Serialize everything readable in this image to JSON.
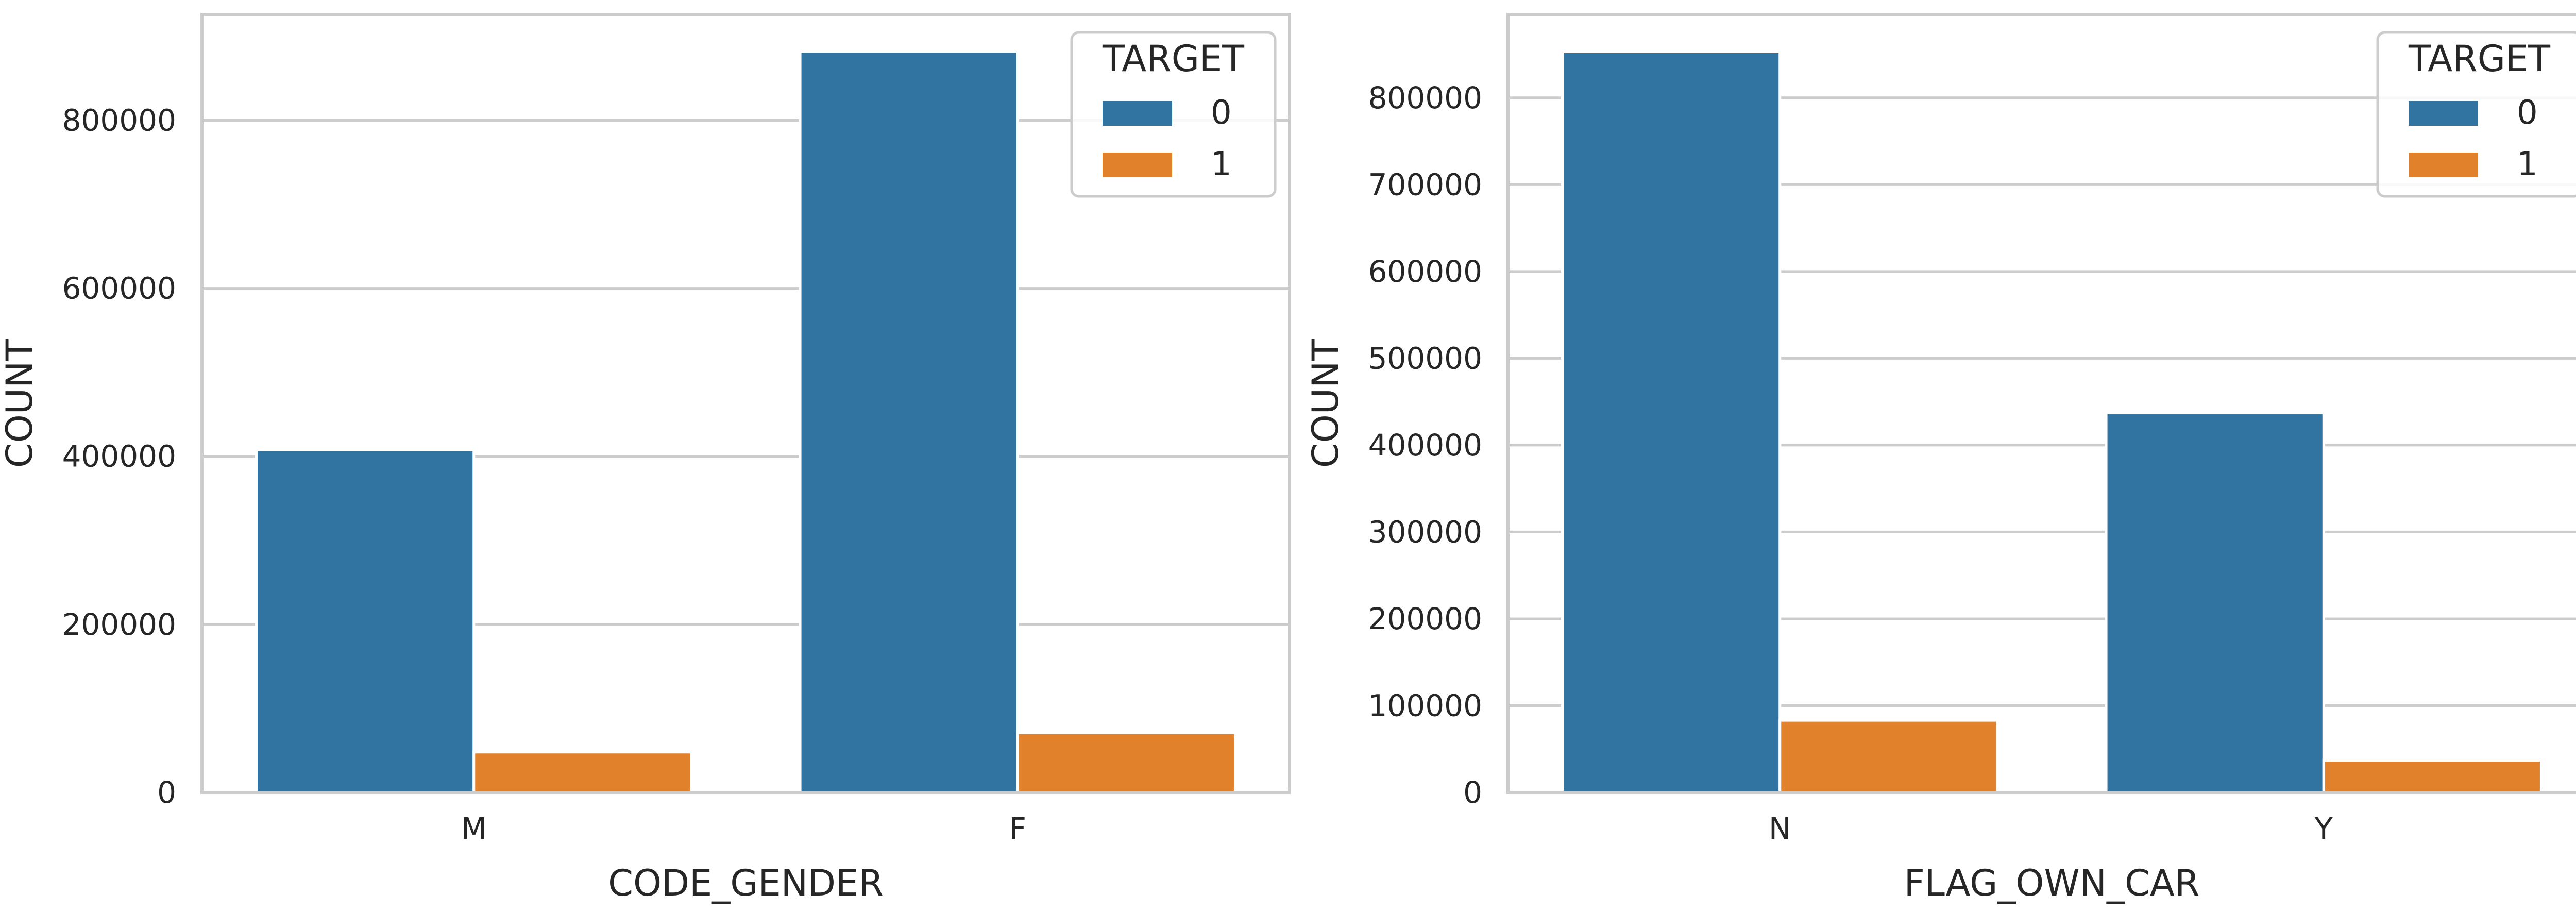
{
  "colors": {
    "target_0": "#3274a1",
    "target_1": "#e1812c",
    "grid": "#cccccc",
    "frame": "#cccccc"
  },
  "chart_data": [
    {
      "type": "bar",
      "categories": [
        "M",
        "F"
      ],
      "series": [
        {
          "name": "0",
          "values": [
            408000,
            882000
          ]
        },
        {
          "name": "1",
          "values": [
            48000,
            71000
          ]
        }
      ],
      "xlabel": "CODE_GENDER",
      "ylabel": "COUNT",
      "ylim": [
        0,
        926000
      ],
      "yticks": [
        0,
        200000,
        400000,
        600000,
        800000
      ],
      "ytick_labels": [
        "0",
        "200000",
        "400000",
        "600000",
        "800000"
      ],
      "legend": {
        "title": "TARGET",
        "entries": [
          "0",
          "1"
        ],
        "placement": "top-right"
      },
      "grid": true
    },
    {
      "type": "bar",
      "categories": [
        "N",
        "Y"
      ],
      "series": [
        {
          "name": "0",
          "values": [
            853000,
            437000
          ]
        },
        {
          "name": "1",
          "values": [
            83000,
            37000
          ]
        }
      ],
      "xlabel": "FLAG_OWN_CAR",
      "ylabel": "COUNT",
      "ylim": [
        0,
        896000
      ],
      "yticks": [
        0,
        100000,
        200000,
        300000,
        400000,
        500000,
        600000,
        700000,
        800000
      ],
      "ytick_labels": [
        "0",
        "100000",
        "200000",
        "300000",
        "400000",
        "500000",
        "600000",
        "700000",
        "800000"
      ],
      "legend": {
        "title": "TARGET",
        "entries": [
          "0",
          "1"
        ],
        "placement": "top-right"
      },
      "grid": true
    }
  ]
}
